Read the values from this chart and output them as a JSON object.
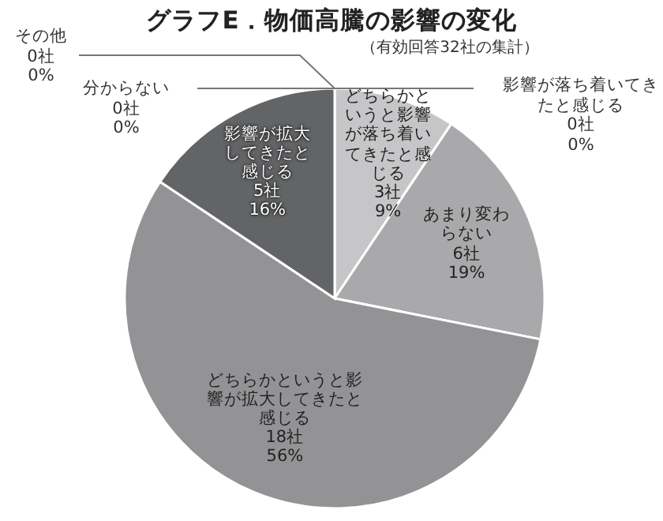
{
  "chart_data": {
    "type": "pie",
    "title": "グラフE．物価高騰の影響の変化",
    "subtitle": "（有効回答32社の集計）",
    "categories": [
      "影響が落ち着いてきたと感じる",
      "どちらかというと影響が落ち着いてきたと感じる",
      "あまり変わらない",
      "どちらかというと影響が拡大してきたと感じる",
      "影響が拡大してきたと感じる",
      "分からない",
      "その他"
    ],
    "values": [
      0,
      3,
      6,
      18,
      5,
      0,
      0
    ],
    "value_labels": [
      "0社 0%",
      "3社 9%",
      "6社 19%",
      "18社 56%",
      "5社 16%",
      "0社 0%",
      "0社 0%"
    ],
    "colors": [
      "#d8d8d8",
      "#c6c6c8",
      "#a9a9ab",
      "#939396",
      "#636466",
      "#d0d0d0",
      "#d0d0d0"
    ]
  }
}
